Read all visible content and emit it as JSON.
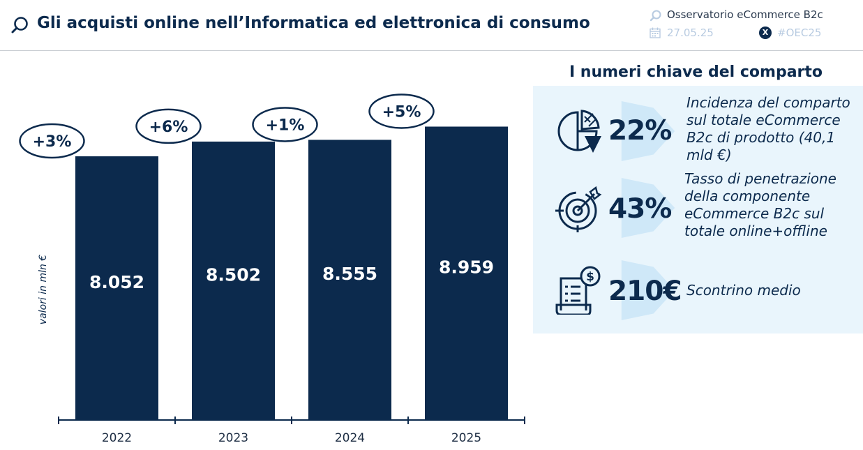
{
  "header": {
    "title": "Gli acquisti online nell’Informatica ed elettronica di consumo",
    "observatory": "Osservatorio eCommerce B2c",
    "date": "27.05.25",
    "hashtag": "#OEC25",
    "x_icon_glyph": "X"
  },
  "chart_data": {
    "type": "bar",
    "categories": [
      "2022",
      "2023",
      "2024",
      "2025"
    ],
    "values": [
      8052,
      8502,
      8555,
      8959
    ],
    "value_labels": [
      "8.052",
      "8.502",
      "8.555",
      "8.959"
    ],
    "growth_labels": [
      "+3%",
      "+6%",
      "+1%",
      "+5%"
    ],
    "title": "",
    "xlabel": "",
    "ylabel": "valori in mln €",
    "ylim": [
      0,
      9800
    ],
    "bar_color": "#0c2a4d",
    "grid": false
  },
  "kpi": {
    "title": "I numeri chiave del comparto",
    "items": [
      {
        "value": "22%",
        "description": "Incidenza del comparto sul totale eCommerce B2c di prodotto (40,1 mld €)",
        "icon": "pie-chart-icon"
      },
      {
        "value": "43%",
        "description": "Tasso di penetrazione della componente eCommerce B2c sul totale online+offline",
        "icon": "target-icon"
      },
      {
        "value": "210€",
        "description": "Scontrino medio",
        "icon": "receipt-icon"
      }
    ]
  },
  "colors": {
    "primary": "#0c2a4d",
    "panel": "#e9f5fc",
    "chevron": "#cfe8f8",
    "muted": "#b8cbe1"
  }
}
